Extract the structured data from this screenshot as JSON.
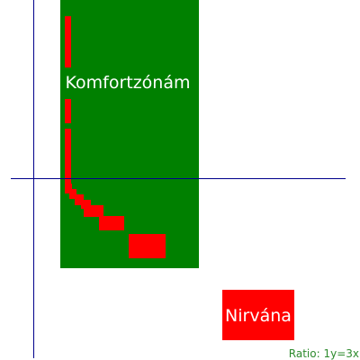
{
  "comfort_zone": {
    "label": "Komfortzónám",
    "color": "#008000"
  },
  "nirvana": {
    "label": "Nirvána",
    "color": "#ff0000"
  },
  "ratio": {
    "text": "Ratio: 1y=3x",
    "color": "#2e8b2e"
  },
  "curve": {
    "color": "#ff0000"
  },
  "axes": {
    "color": "#00008b"
  }
}
